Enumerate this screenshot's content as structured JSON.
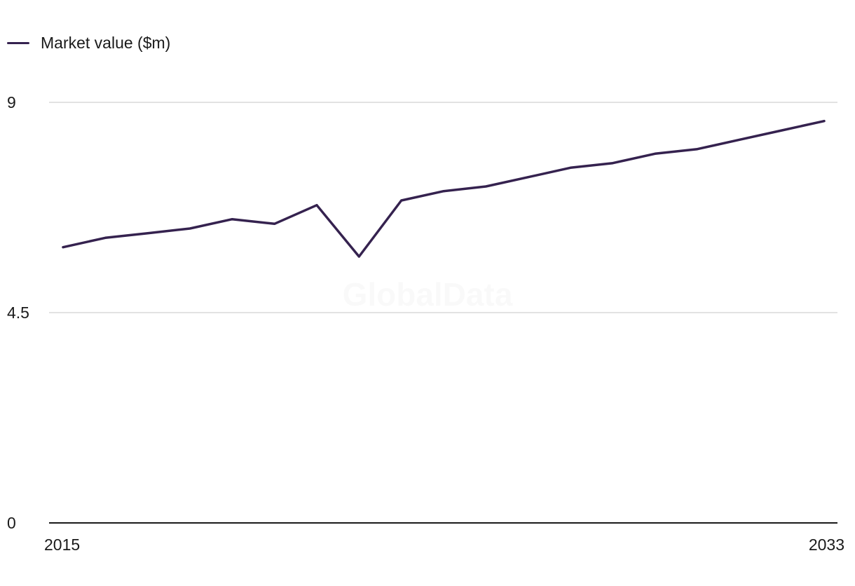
{
  "legend": {
    "label": "Market value ($m)"
  },
  "watermark": "GlobalData",
  "colors": {
    "series": "#35224f",
    "grid": "#d9d9d9",
    "axis": "#1a1a1a"
  },
  "chart_data": {
    "type": "line",
    "title": "",
    "xlabel": "",
    "ylabel": "",
    "x": [
      2015,
      2016,
      2017,
      2018,
      2019,
      2020,
      2021,
      2022,
      2023,
      2024,
      2025,
      2026,
      2027,
      2028,
      2029,
      2030,
      2031,
      2032,
      2033
    ],
    "x_tick_labels": [
      "2015",
      "2033"
    ],
    "y_ticks": [
      0,
      4.5,
      9
    ],
    "y_tick_labels": [
      "0",
      "4.5",
      "9"
    ],
    "ylim": [
      0,
      9
    ],
    "grid": true,
    "legend_position": "top-left",
    "series": [
      {
        "name": "Market value ($m)",
        "values": [
          5.9,
          6.1,
          6.2,
          6.3,
          6.5,
          6.4,
          6.8,
          5.7,
          6.9,
          7.1,
          7.2,
          7.4,
          7.6,
          7.7,
          7.9,
          8.0,
          8.2,
          8.4,
          8.6
        ]
      }
    ]
  }
}
